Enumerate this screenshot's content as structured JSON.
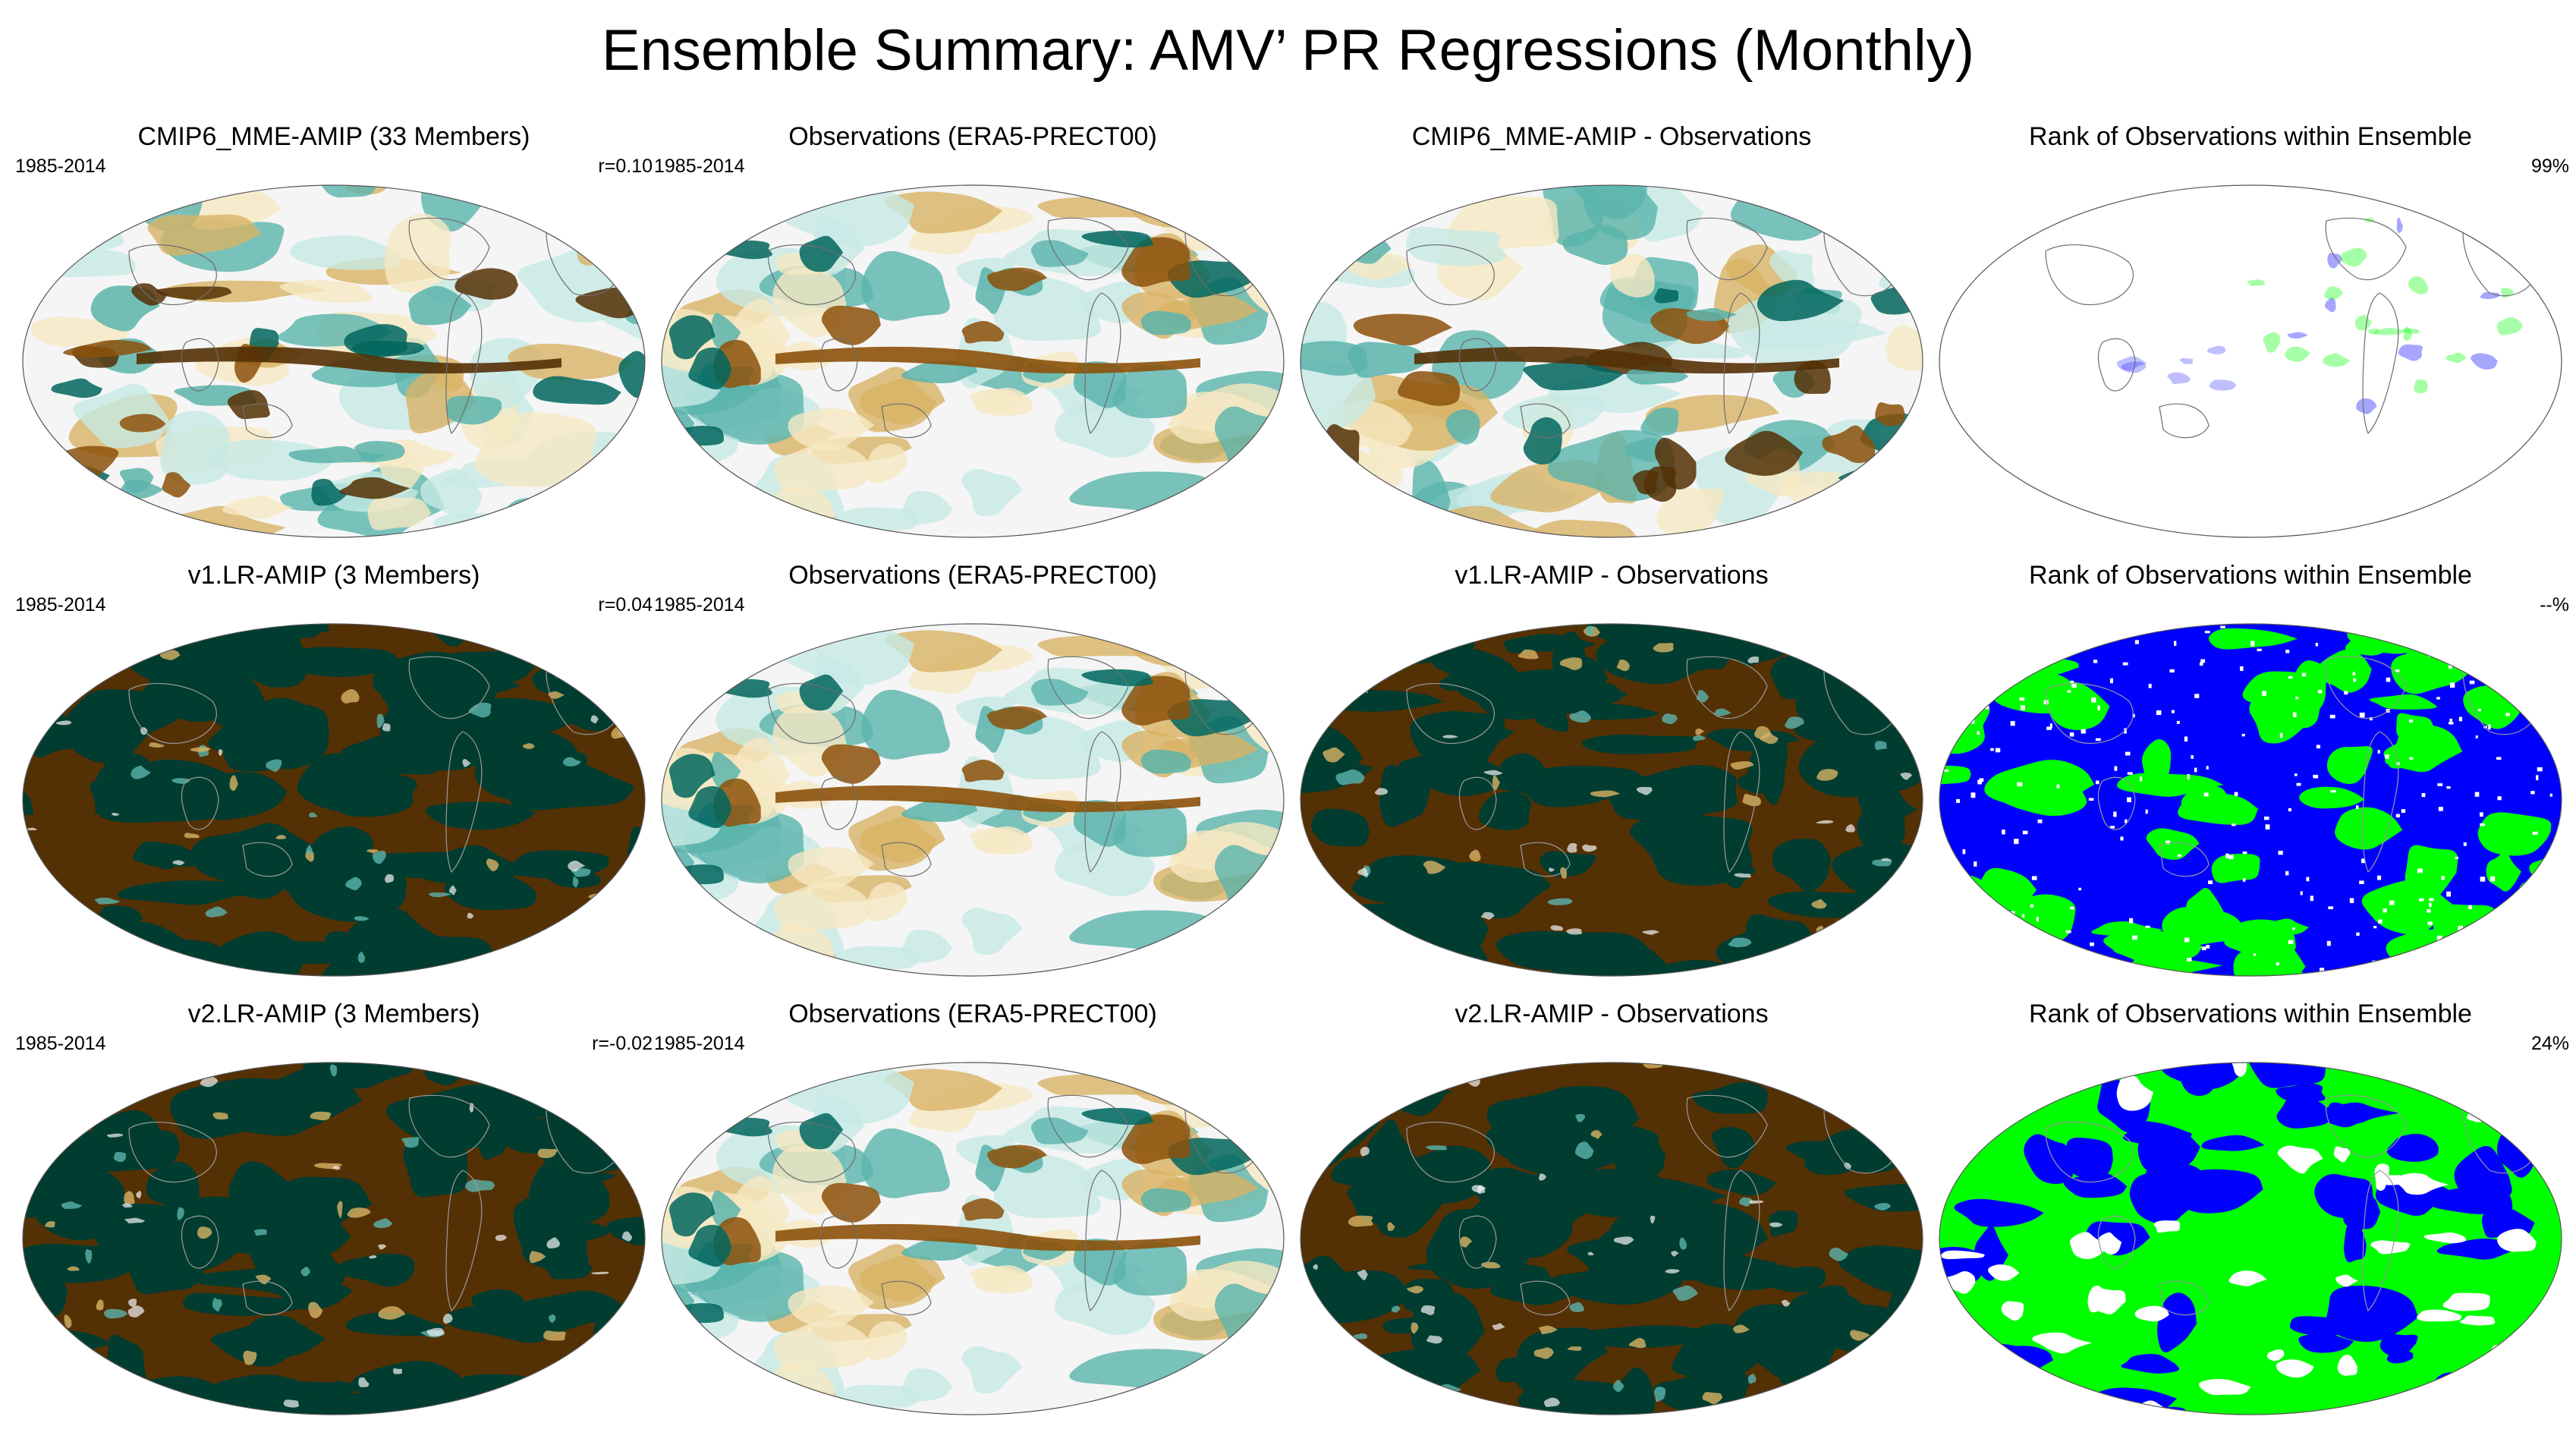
{
  "figure": {
    "title": "Ensemble Summary: AMV’ PR Regressions (Monthly)"
  },
  "colors": {
    "brown_dark": "#543005",
    "brown_mid": "#8c510a",
    "tan": "#d8b365",
    "cream": "#f6e8c3",
    "white": "#f5f5f5",
    "mint": "#c7eae5",
    "teal": "#5ab4ac",
    "teal_dark": "#01665e",
    "teal_deep": "#003c30",
    "rank_blue": "#0000ff",
    "rank_green": "#00ff00",
    "rank_white": "#ffffff"
  },
  "rows": [
    {
      "panels": [
        {
          "title": "CMIP6_MME-AMIP (33 Members)",
          "left": "1985-2014",
          "right": "r=0.10",
          "style": "model-smooth",
          "seed": 11
        },
        {
          "title": "Observations (ERA5-PRECT00)",
          "left": "1985-2014",
          "right": "",
          "style": "obs",
          "seed": 23
        },
        {
          "title": "CMIP6_MME-AMIP - Observations",
          "left": "",
          "right": "",
          "style": "model-smooth",
          "seed": 37
        },
        {
          "title": "Rank of Observations within Ensemble",
          "left": "",
          "right": "99%",
          "style": "rank-sparse",
          "seed": 41
        }
      ]
    },
    {
      "panels": [
        {
          "title": "v1.LR-AMIP (3 Members)",
          "left": "1985-2014",
          "right": "r=0.04",
          "style": "model-saturated",
          "seed": 53
        },
        {
          "title": "Observations (ERA5-PRECT00)",
          "left": "1985-2014",
          "right": "",
          "style": "obs",
          "seed": 23
        },
        {
          "title": "v1.LR-AMIP - Observations",
          "left": "",
          "right": "",
          "style": "model-saturated",
          "seed": 67
        },
        {
          "title": "Rank of Observations within Ensemble",
          "left": "",
          "right": "--%",
          "style": "rank-blue",
          "seed": 71
        }
      ]
    },
    {
      "panels": [
        {
          "title": "v2.LR-AMIP (3 Members)",
          "left": "1985-2014",
          "right": "r=-0.02",
          "style": "model-saturated",
          "seed": 83
        },
        {
          "title": "Observations (ERA5-PRECT00)",
          "left": "1985-2014",
          "right": "",
          "style": "obs",
          "seed": 23
        },
        {
          "title": "v2.LR-AMIP - Observations",
          "left": "",
          "right": "",
          "style": "model-saturated",
          "seed": 97
        },
        {
          "title": "Rank of Observations within Ensemble",
          "left": "",
          "right": "24%",
          "style": "rank-green",
          "seed": 101
        }
      ]
    }
  ]
}
